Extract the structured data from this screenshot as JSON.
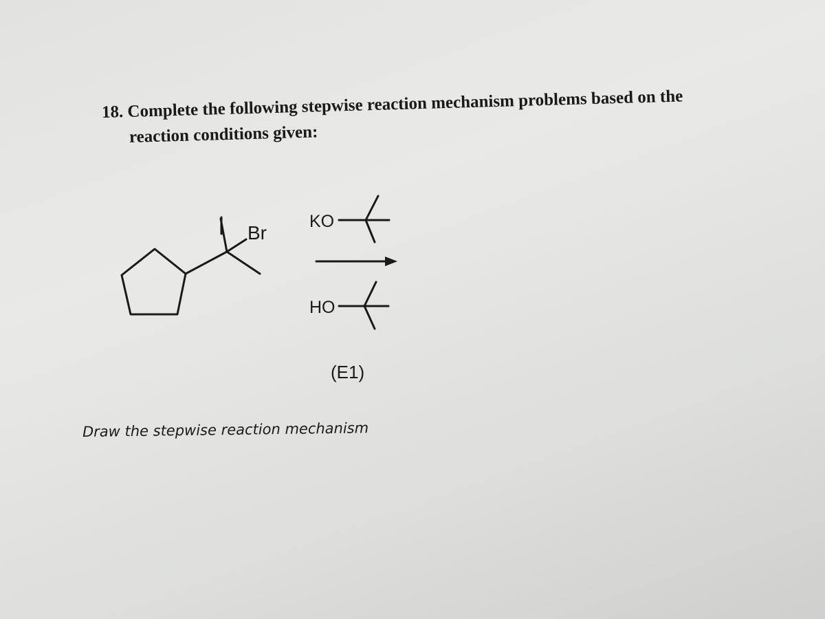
{
  "question": {
    "line1": "18. Complete the following stepwise reaction mechanism problems based on the",
    "line2": "reaction conditions given:"
  },
  "molecule": {
    "leaving_group": "Br"
  },
  "reagents": {
    "base": "KO",
    "solvent": "HO"
  },
  "mechanism": "(E1)",
  "instruction": "Draw the stepwise reaction mechanism"
}
